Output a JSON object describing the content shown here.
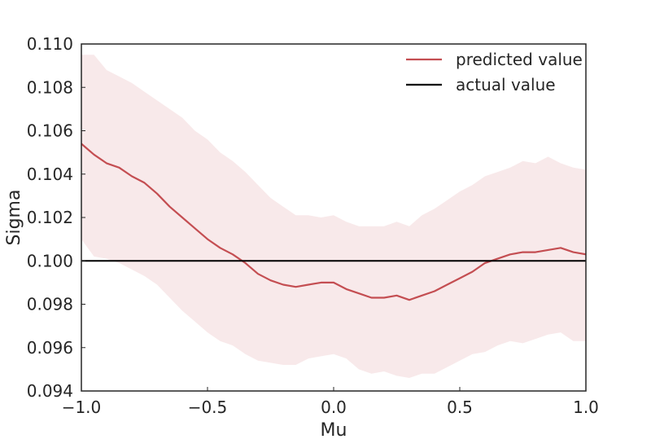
{
  "chart_data": {
    "type": "line",
    "title": "",
    "xlabel": "Mu",
    "ylabel": "Sigma",
    "xlim": [
      -1.0,
      1.0
    ],
    "ylim": [
      0.094,
      0.11
    ],
    "xticks": [
      -1.0,
      -0.5,
      0.0,
      0.5,
      1.0
    ],
    "xtick_labels": [
      "−1.0",
      "−0.5",
      "0.0",
      "0.5",
      "1.0"
    ],
    "yticks": [
      0.094,
      0.096,
      0.098,
      0.1,
      0.102,
      0.104,
      0.106,
      0.108,
      0.11
    ],
    "ytick_labels": [
      "0.094",
      "0.096",
      "0.098",
      "0.100",
      "0.102",
      "0.104",
      "0.106",
      "0.108",
      "0.110"
    ],
    "grid": false,
    "legend_position": "top-right",
    "series": [
      {
        "name": "predicted value",
        "color": "#c44e52",
        "x": [
          -1.0,
          -0.95,
          -0.9,
          -0.85,
          -0.8,
          -0.75,
          -0.7,
          -0.65,
          -0.6,
          -0.55,
          -0.5,
          -0.45,
          -0.4,
          -0.35,
          -0.3,
          -0.25,
          -0.2,
          -0.15,
          -0.1,
          -0.05,
          0.0,
          0.05,
          0.1,
          0.15,
          0.2,
          0.25,
          0.3,
          0.35,
          0.4,
          0.45,
          0.5,
          0.55,
          0.6,
          0.65,
          0.7,
          0.75,
          0.8,
          0.85,
          0.9,
          0.95,
          1.0
        ],
        "y": [
          0.1054,
          0.1049,
          0.1045,
          0.1043,
          0.1039,
          0.1036,
          0.1031,
          0.1025,
          0.102,
          0.1015,
          0.101,
          0.1006,
          0.1003,
          0.0999,
          0.0994,
          0.0991,
          0.0989,
          0.0988,
          0.0989,
          0.099,
          0.099,
          0.0987,
          0.0985,
          0.0983,
          0.0983,
          0.0984,
          0.0982,
          0.0984,
          0.0986,
          0.0989,
          0.0992,
          0.0995,
          0.0999,
          0.1001,
          0.1003,
          0.1004,
          0.1004,
          0.1005,
          0.1006,
          0.1004,
          0.1003
        ]
      },
      {
        "name": "actual value",
        "color": "#000000",
        "x": [
          -1.0,
          1.0
        ],
        "y": [
          0.1,
          0.1
        ]
      }
    ],
    "band": {
      "series": "predicted value",
      "color": "#c44e52",
      "opacity": 0.12,
      "x": [
        -1.0,
        -0.95,
        -0.9,
        -0.85,
        -0.8,
        -0.75,
        -0.7,
        -0.65,
        -0.6,
        -0.55,
        -0.5,
        -0.45,
        -0.4,
        -0.35,
        -0.3,
        -0.25,
        -0.2,
        -0.15,
        -0.1,
        -0.05,
        0.0,
        0.05,
        0.1,
        0.15,
        0.2,
        0.25,
        0.3,
        0.35,
        0.4,
        0.45,
        0.5,
        0.55,
        0.6,
        0.65,
        0.7,
        0.75,
        0.8,
        0.85,
        0.9,
        0.95,
        1.0
      ],
      "upper": [
        0.1095,
        0.1095,
        0.1088,
        0.1085,
        0.1082,
        0.1078,
        0.1074,
        0.107,
        0.1066,
        0.106,
        0.1056,
        0.105,
        0.1046,
        0.1041,
        0.1035,
        0.1029,
        0.1025,
        0.1021,
        0.1021,
        0.102,
        0.1021,
        0.1018,
        0.1016,
        0.1016,
        0.1016,
        0.1018,
        0.1016,
        0.1021,
        0.1024,
        0.1028,
        0.1032,
        0.1035,
        0.1039,
        0.1041,
        0.1043,
        0.1046,
        0.1045,
        0.1048,
        0.1045,
        0.1043,
        0.1042
      ],
      "lower": [
        0.101,
        0.1002,
        0.1001,
        0.0999,
        0.0996,
        0.0993,
        0.0989,
        0.0983,
        0.0977,
        0.0972,
        0.0967,
        0.0963,
        0.0961,
        0.0957,
        0.0954,
        0.0953,
        0.0952,
        0.0952,
        0.0955,
        0.0956,
        0.0957,
        0.0955,
        0.095,
        0.0948,
        0.0949,
        0.0947,
        0.0946,
        0.0948,
        0.0948,
        0.0951,
        0.0954,
        0.0957,
        0.0958,
        0.0961,
        0.0963,
        0.0962,
        0.0964,
        0.0966,
        0.0967,
        0.0963,
        0.0963
      ]
    }
  }
}
